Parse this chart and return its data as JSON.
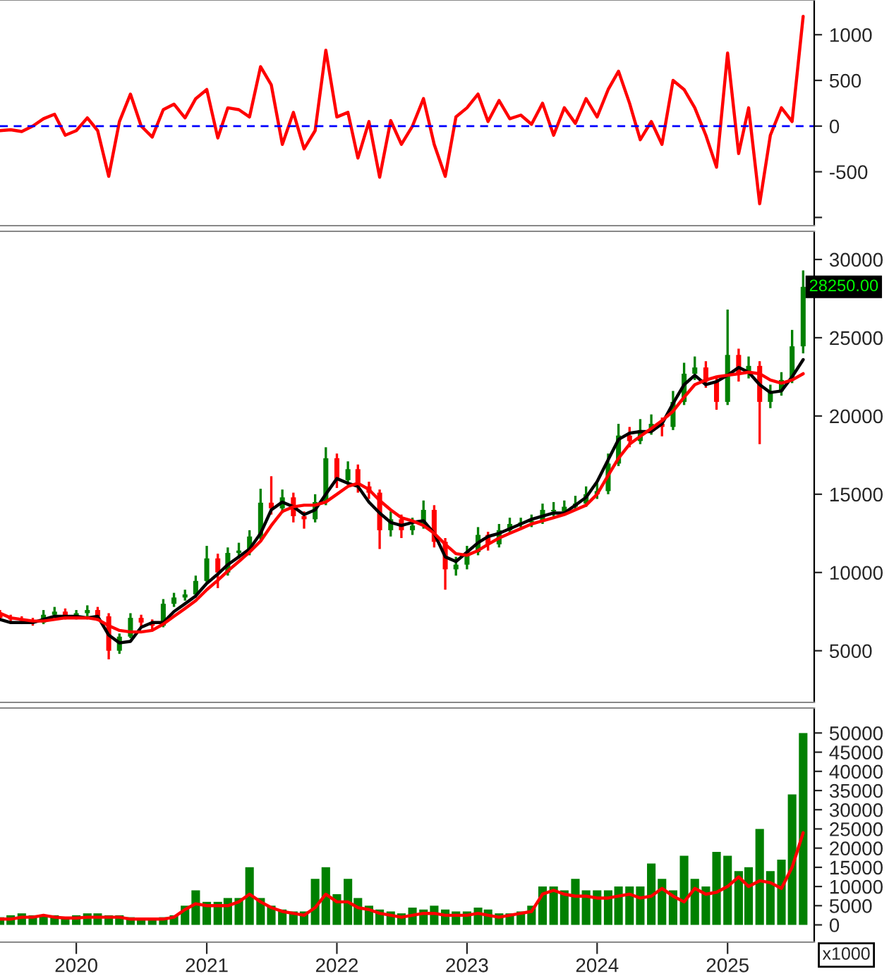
{
  "chart_data": [
    {
      "type": "line",
      "x": [
        "2019-06",
        "2019-07",
        "2019-08",
        "2019-09",
        "2019-10",
        "2019-11",
        "2019-12",
        "2020-01",
        "2020-02",
        "2020-03",
        "2020-04",
        "2020-05",
        "2020-06",
        "2020-07",
        "2020-08",
        "2020-09",
        "2020-10",
        "2020-11",
        "2020-12",
        "2021-01",
        "2021-02",
        "2021-03",
        "2021-04",
        "2021-05",
        "2021-06",
        "2021-07",
        "2021-08",
        "2021-09",
        "2021-10",
        "2021-11",
        "2021-12",
        "2022-01",
        "2022-02",
        "2022-03",
        "2022-04",
        "2022-05",
        "2022-06",
        "2022-07",
        "2022-08",
        "2022-09",
        "2022-10",
        "2022-11",
        "2022-12",
        "2023-01",
        "2023-02",
        "2023-03",
        "2023-04",
        "2023-05",
        "2023-06",
        "2023-07",
        "2023-08",
        "2023-09",
        "2023-10",
        "2023-11",
        "2023-12",
        "2024-01",
        "2024-02",
        "2024-03",
        "2024-04",
        "2024-05",
        "2024-06",
        "2024-07",
        "2024-08",
        "2024-09",
        "2024-10",
        "2024-11",
        "2024-12",
        "2025-01",
        "2025-02",
        "2025-03",
        "2025-04",
        "2025-05",
        "2025-06",
        "2025-07",
        "2025-08"
      ],
      "series": [
        {
          "color": "#ff0000",
          "values": [
            -50,
            -40,
            -60,
            0,
            80,
            130,
            -100,
            -50,
            90,
            -50,
            -550,
            50,
            350,
            0,
            -120,
            180,
            240,
            90,
            300,
            400,
            -130,
            200,
            180,
            100,
            650,
            450,
            -200,
            150,
            -250,
            -50,
            830,
            100,
            150,
            -350,
            50,
            -560,
            60,
            -200,
            0,
            300,
            -200,
            -550,
            100,
            200,
            350,
            50,
            280,
            80,
            120,
            20,
            250,
            -100,
            200,
            30,
            300,
            100,
            400,
            600,
            250,
            -150,
            50,
            -200,
            500,
            400,
            200,
            -100,
            -450,
            800,
            -300,
            200,
            -850,
            -100,
            200,
            50,
            1200
          ]
        }
      ],
      "xlim": [
        "2019-06-01",
        "2025-09-01"
      ],
      "ylim": [
        -1090,
        1380
      ],
      "yticks": [
        {
          "value": -1000,
          "label": null
        },
        -500,
        0,
        500,
        1000
      ],
      "ref_lines": [
        {
          "axis": "y",
          "value": 0,
          "color": "#0000ff",
          "line_style": "dashed"
        }
      ],
      "tick_labels": "y"
    },
    {
      "type": "candlestick",
      "x": [
        "2019-06",
        "2019-07",
        "2019-08",
        "2019-09",
        "2019-10",
        "2019-11",
        "2019-12",
        "2020-01",
        "2020-02",
        "2020-03",
        "2020-04",
        "2020-05",
        "2020-06",
        "2020-07",
        "2020-08",
        "2020-09",
        "2020-10",
        "2020-11",
        "2020-12",
        "2021-01",
        "2021-02",
        "2021-03",
        "2021-04",
        "2021-05",
        "2021-06",
        "2021-07",
        "2021-08",
        "2021-09",
        "2021-10",
        "2021-11",
        "2021-12",
        "2022-01",
        "2022-02",
        "2022-03",
        "2022-04",
        "2022-05",
        "2022-06",
        "2022-07",
        "2022-08",
        "2022-09",
        "2022-10",
        "2022-11",
        "2022-12",
        "2023-01",
        "2023-02",
        "2023-03",
        "2023-04",
        "2023-05",
        "2023-06",
        "2023-07",
        "2023-08",
        "2023-09",
        "2023-10",
        "2023-11",
        "2023-12",
        "2024-01",
        "2024-02",
        "2024-03",
        "2024-04",
        "2024-05",
        "2024-06",
        "2024-07",
        "2024-08",
        "2024-09",
        "2024-10",
        "2024-11",
        "2024-12",
        "2025-01",
        "2025-02",
        "2025-03",
        "2025-04",
        "2025-05",
        "2025-06",
        "2025-07",
        "2025-08"
      ],
      "ohlc": [
        [
          7300,
          7600,
          6900,
          7100
        ],
        [
          7100,
          7300,
          6800,
          7000
        ],
        [
          7000,
          7200,
          6700,
          6900
        ],
        [
          6900,
          7100,
          6600,
          6800
        ],
        [
          6800,
          7600,
          6700,
          7300
        ],
        [
          7300,
          7800,
          7100,
          7500
        ],
        [
          7500,
          7700,
          7000,
          7200
        ],
        [
          7200,
          7600,
          7000,
          7400
        ],
        [
          7400,
          7900,
          7200,
          7600
        ],
        [
          7600,
          7800,
          6900,
          7200
        ],
        [
          7200,
          7400,
          4450,
          5000
        ],
        [
          5000,
          6100,
          4800,
          5900
        ],
        [
          5900,
          7400,
          5800,
          7100
        ],
        [
          7100,
          7300,
          6500,
          6800
        ],
        [
          6800,
          7000,
          6300,
          6600
        ],
        [
          6600,
          8300,
          6500,
          8000
        ],
        [
          8000,
          8700,
          7800,
          8400
        ],
        [
          8400,
          8900,
          8200,
          8600
        ],
        [
          8600,
          9800,
          8400,
          9460
        ],
        [
          9460,
          11700,
          9300,
          10900
        ],
        [
          10900,
          11200,
          9000,
          10000
        ],
        [
          10000,
          11600,
          9800,
          11250
        ],
        [
          11250,
          11900,
          10900,
          11400
        ],
        [
          11400,
          12700,
          11100,
          12300
        ],
        [
          12300,
          15350,
          12100,
          14460
        ],
        [
          14460,
          16150,
          13700,
          14100
        ],
        [
          14100,
          15300,
          13800,
          14800
        ],
        [
          14800,
          15100,
          13200,
          13600
        ],
        [
          13600,
          13900,
          12800,
          13400
        ],
        [
          13400,
          15000,
          13200,
          14500
        ],
        [
          14500,
          18000,
          14300,
          17300
        ],
        [
          17300,
          17600,
          15400,
          15900
        ],
        [
          15900,
          17100,
          15600,
          16600
        ],
        [
          16600,
          16900,
          15100,
          15500
        ],
        [
          15500,
          15800,
          14700,
          15100
        ],
        [
          15100,
          15300,
          11500,
          12700
        ],
        [
          12700,
          13900,
          12300,
          13400
        ],
        [
          13400,
          13700,
          12200,
          12700
        ],
        [
          12700,
          13500,
          12400,
          13000
        ],
        [
          13000,
          14600,
          12800,
          14000
        ],
        [
          14000,
          14300,
          11600,
          11960
        ],
        [
          11960,
          12200,
          8900,
          10200
        ],
        [
          10200,
          11000,
          9800,
          10500
        ],
        [
          10500,
          11700,
          10200,
          11300
        ],
        [
          11300,
          12900,
          11100,
          12400
        ],
        [
          12400,
          12600,
          11400,
          11800
        ],
        [
          11800,
          13100,
          11600,
          12700
        ],
        [
          12700,
          13500,
          12500,
          13100
        ],
        [
          13100,
          13500,
          12800,
          13200
        ],
        [
          13200,
          13700,
          12900,
          13300
        ],
        [
          13300,
          14400,
          13100,
          14000
        ],
        [
          14000,
          14500,
          13600,
          13900
        ],
        [
          13900,
          14600,
          13800,
          14200
        ],
        [
          14200,
          14900,
          14000,
          14400
        ],
        [
          14400,
          15500,
          14200,
          15000
        ],
        [
          15000,
          15700,
          14700,
          15200
        ],
        [
          15200,
          17600,
          15000,
          16960
        ],
        [
          16960,
          19500,
          16800,
          18750
        ],
        [
          18750,
          19300,
          18000,
          18400
        ],
        [
          18400,
          19800,
          18200,
          19100
        ],
        [
          19100,
          20100,
          18800,
          19500
        ],
        [
          19500,
          19900,
          18700,
          19300
        ],
        [
          19300,
          21600,
          19100,
          20900
        ],
        [
          20900,
          23400,
          20700,
          22700
        ],
        [
          22700,
          23800,
          22300,
          23100
        ],
        [
          23100,
          23500,
          21800,
          22200
        ],
        [
          22200,
          22500,
          20400,
          20900
        ],
        [
          20900,
          26800,
          20700,
          23900
        ],
        [
          23900,
          24300,
          22200,
          22700
        ],
        [
          22700,
          23800,
          22400,
          23200
        ],
        [
          23200,
          23500,
          18200,
          20900
        ],
        [
          20900,
          22000,
          20500,
          21600
        ],
        [
          21600,
          22800,
          21300,
          22300
        ],
        [
          22300,
          25500,
          22100,
          24450
        ],
        [
          24450,
          29300,
          24000,
          28250
        ]
      ],
      "colors": [
        "#ff0000",
        "#ff0000",
        "#ff0000",
        "#ff0000",
        "#008000",
        "#008000",
        "#ff0000",
        "#008000",
        "#008000",
        "#ff0000",
        "#ff0000",
        "#008000",
        "#008000",
        "#ff0000",
        "#ff0000",
        "#008000",
        "#008000",
        "#008000",
        "#008000",
        "#008000",
        "#ff0000",
        "#008000",
        "#008000",
        "#008000",
        "#008000",
        "#ff0000",
        "#008000",
        "#ff0000",
        "#ff0000",
        "#008000",
        "#008000",
        "#ff0000",
        "#008000",
        "#ff0000",
        "#ff0000",
        "#ff0000",
        "#008000",
        "#ff0000",
        "#008000",
        "#008000",
        "#ff0000",
        "#ff0000",
        "#008000",
        "#008000",
        "#008000",
        "#ff0000",
        "#008000",
        "#008000",
        "#008000",
        "#008000",
        "#008000",
        "#008000",
        "#008000",
        "#008000",
        "#008000",
        "#008000",
        "#008000",
        "#008000",
        "#ff0000",
        "#008000",
        "#008000",
        "#ff0000",
        "#008000",
        "#008000",
        "#008000",
        "#ff0000",
        "#ff0000",
        "#008000",
        "#ff0000",
        "#008000",
        "#ff0000",
        "#008000",
        "#008000",
        "#008000",
        "#008000"
      ],
      "series": [
        {
          "type": "line",
          "color": "#000000",
          "values": [
            7000,
            6800,
            6800,
            6800,
            7000,
            7200,
            7200,
            7200,
            7100,
            7200,
            6000,
            5500,
            5600,
            6500,
            6800,
            6800,
            7500,
            8000,
            8500,
            9300,
            9900,
            10500,
            11000,
            11500,
            12500,
            14000,
            14500,
            14200,
            13700,
            14000,
            15000,
            16000,
            15700,
            15500,
            14500,
            13800,
            13200,
            13000,
            13200,
            13300,
            12500,
            11000,
            10700,
            11300,
            11900,
            12300,
            12500,
            12800,
            13100,
            13400,
            13600,
            13800,
            13800,
            14300,
            14800,
            15800,
            17200,
            18500,
            18900,
            19000,
            19000,
            19500,
            20800,
            22000,
            22600,
            22000,
            22200,
            22600,
            23100,
            22800,
            22000,
            21500,
            21600,
            22500,
            23600
          ]
        },
        {
          "type": "line",
          "color": "#ff0000",
          "values": [
            7400,
            7100,
            7000,
            6900,
            6900,
            7000,
            7100,
            7100,
            7100,
            7000,
            6600,
            6300,
            6200,
            6200,
            6300,
            6700,
            7200,
            7700,
            8200,
            8900,
            9500,
            10100,
            10700,
            11300,
            12000,
            13000,
            13900,
            14200,
            14300,
            14300,
            14500,
            15000,
            15500,
            15700,
            15300,
            14600,
            14000,
            13500,
            13300,
            13000,
            12500,
            11800,
            11200,
            11100,
            11400,
            11800,
            12200,
            12500,
            12800,
            13100,
            13300,
            13500,
            13700,
            14000,
            14300,
            15000,
            16200,
            17300,
            18200,
            18700,
            19200,
            19700,
            20300,
            21200,
            22000,
            22300,
            22500,
            22600,
            22700,
            22800,
            22700,
            22300,
            22100,
            22300,
            22700
          ]
        }
      ],
      "xlim": [
        "2019-06-01",
        "2025-09-01"
      ],
      "ylim": [
        1700,
        31800
      ],
      "yticks": [
        5000,
        10000,
        15000,
        20000,
        25000,
        30000
      ],
      "annotations": [
        {
          "text": "28250.00",
          "x": "2025-08",
          "y": 28250
        }
      ],
      "tick_labels": "y"
    },
    {
      "type": "bar",
      "x": [
        "2019-06",
        "2019-07",
        "2019-08",
        "2019-09",
        "2019-10",
        "2019-11",
        "2019-12",
        "2020-01",
        "2020-02",
        "2020-03",
        "2020-04",
        "2020-05",
        "2020-06",
        "2020-07",
        "2020-08",
        "2020-09",
        "2020-10",
        "2020-11",
        "2020-12",
        "2021-01",
        "2021-02",
        "2021-03",
        "2021-04",
        "2021-05",
        "2021-06",
        "2021-07",
        "2021-08",
        "2021-09",
        "2021-10",
        "2021-11",
        "2021-12",
        "2022-01",
        "2022-02",
        "2022-03",
        "2022-04",
        "2022-05",
        "2022-06",
        "2022-07",
        "2022-08",
        "2022-09",
        "2022-10",
        "2022-11",
        "2022-12",
        "2023-01",
        "2023-02",
        "2023-03",
        "2023-04",
        "2023-05",
        "2023-06",
        "2023-07",
        "2023-08",
        "2023-09",
        "2023-10",
        "2023-11",
        "2023-12",
        "2024-01",
        "2024-02",
        "2024-03",
        "2024-04",
        "2024-05",
        "2024-06",
        "2024-07",
        "2024-08",
        "2024-09",
        "2024-10",
        "2024-11",
        "2024-12",
        "2025-01",
        "2025-02",
        "2025-03",
        "2025-04",
        "2025-05",
        "2025-06",
        "2025-07",
        "2025-08"
      ],
      "series": [
        {
          "color": "#008000",
          "values": [
            2000,
            2500,
            3000,
            2500,
            2500,
            2500,
            2000,
            2500,
            3000,
            3000,
            2500,
            2500,
            2000,
            1800,
            1800,
            2000,
            2500,
            5000,
            9000,
            6000,
            6000,
            7000,
            7000,
            15000,
            7000,
            5000,
            4000,
            3500,
            3500,
            12000,
            15000,
            8000,
            12000,
            7000,
            5000,
            4000,
            3500,
            3000,
            4500,
            4000,
            5000,
            4000,
            3500,
            3500,
            4500,
            4000,
            3000,
            3000,
            3500,
            5000,
            10000,
            10000,
            9000,
            12000,
            9000,
            9000,
            9000,
            10000,
            10000,
            10000,
            16000,
            12000,
            9000,
            18000,
            12000,
            10000,
            19000,
            18000,
            14000,
            15000,
            25000,
            14000,
            17000,
            34000,
            50000
          ]
        },
        {
          "type": "line",
          "color": "#ff0000",
          "values": [
            1500,
            1500,
            2000,
            2000,
            2500,
            2000,
            1800,
            1800,
            2000,
            2000,
            2000,
            2000,
            1500,
            1500,
            1500,
            1500,
            2000,
            4000,
            5500,
            5000,
            5000,
            5000,
            6000,
            8000,
            6000,
            4500,
            3500,
            3000,
            2500,
            4500,
            8000,
            6000,
            6000,
            4500,
            4000,
            3000,
            2500,
            2000,
            2500,
            3000,
            3000,
            2500,
            2500,
            2500,
            3000,
            2500,
            2000,
            2500,
            3000,
            3500,
            8000,
            9000,
            8000,
            7500,
            7500,
            7000,
            7000,
            7500,
            8000,
            7000,
            7500,
            9500,
            7500,
            6000,
            9500,
            8000,
            8500,
            10000,
            12500,
            10000,
            11500,
            11000,
            9500,
            15000,
            24000
          ]
        }
      ],
      "xlim": [
        "2019-06-01",
        "2025-09-01"
      ],
      "ylim": [
        -4500,
        56500
      ],
      "yticks": [
        0,
        5000,
        10000,
        15000,
        20000,
        25000,
        30000,
        35000,
        40000,
        45000,
        50000
      ],
      "xticks": [
        {
          "value": "2020-01-01",
          "label": "2020"
        },
        {
          "value": "2021-01-01",
          "label": "2021"
        },
        {
          "value": "2022-01-01",
          "label": "2022"
        },
        {
          "value": "2023-01-01",
          "label": "2023"
        },
        {
          "value": "2024-01-01",
          "label": "2024"
        },
        {
          "value": "2025-01-01",
          "label": "2025"
        }
      ],
      "annotations": [
        "x1000"
      ]
    }
  ]
}
